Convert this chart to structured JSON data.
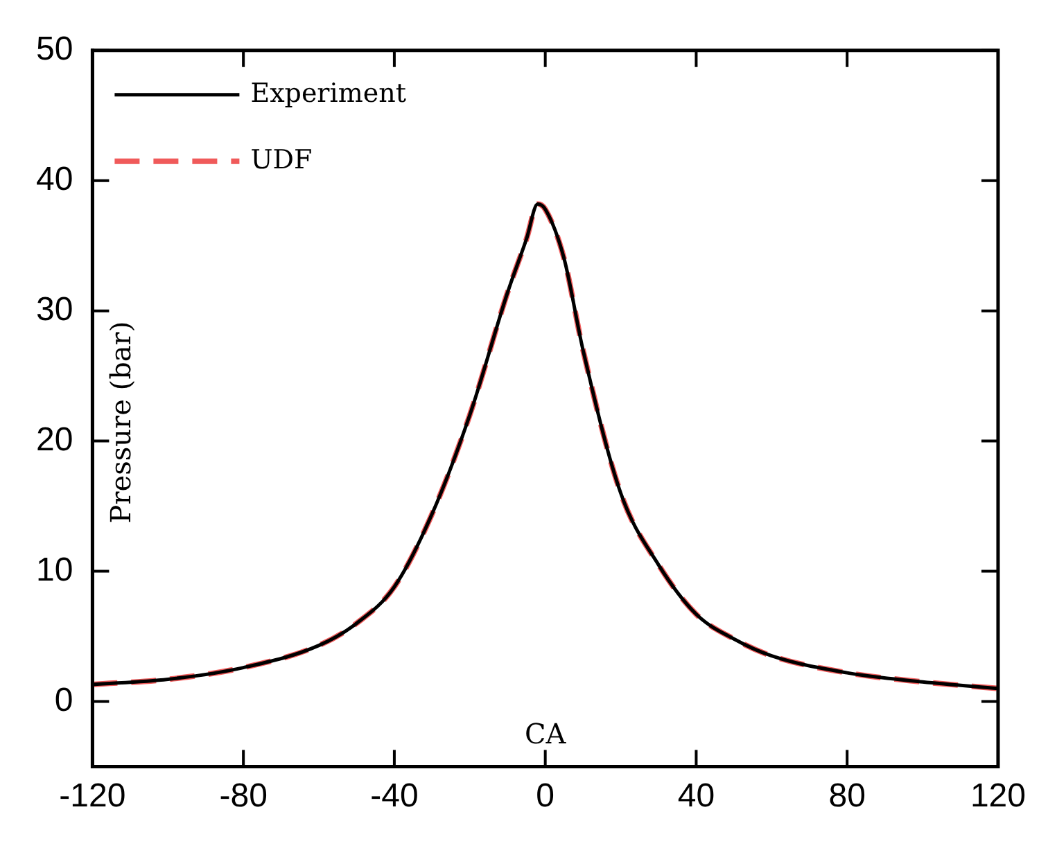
{
  "chart_data": {
    "type": "line",
    "xlabel": "CA",
    "ylabel": "Pressure (bar)",
    "xlim": [
      -120,
      120
    ],
    "ylim": [
      -5,
      50
    ],
    "xticks": [
      -120,
      -80,
      -40,
      0,
      40,
      80,
      120
    ],
    "yticks": [
      0,
      10,
      20,
      30,
      40,
      50
    ],
    "grid": false,
    "legend": "top left",
    "marker": "none",
    "series": [
      {
        "name": "Experiment",
        "color": "#000000",
        "line_style": "solid",
        "x": [
          -120,
          -100,
          -80,
          -60,
          -50,
          -40,
          -30,
          -20,
          -10,
          -5,
          -2,
          0,
          5,
          10,
          20,
          30,
          40,
          50,
          60,
          80,
          100,
          120
        ],
        "values": [
          1.3,
          1.7,
          2.6,
          4.3,
          6.0,
          8.8,
          14.4,
          22,
          31.4,
          35.5,
          38.2,
          37.8,
          34,
          27,
          16,
          10.5,
          6.7,
          4.8,
          3.5,
          2.2,
          1.5,
          1.0
        ]
      },
      {
        "name": "UDF",
        "color": "#f05a5a",
        "line_style": "dashed",
        "x": [
          -120,
          -100,
          -80,
          -60,
          -50,
          -40,
          -30,
          -20,
          -10,
          -5,
          -2,
          0,
          5,
          10,
          20,
          30,
          40,
          50,
          60,
          80,
          100,
          120
        ],
        "values": [
          1.3,
          1.7,
          2.6,
          4.3,
          6.0,
          8.8,
          14.4,
          22,
          31.4,
          35.5,
          38.2,
          37.8,
          34,
          27,
          16,
          10.5,
          6.7,
          4.8,
          3.5,
          2.2,
          1.5,
          1.0
        ]
      }
    ]
  }
}
